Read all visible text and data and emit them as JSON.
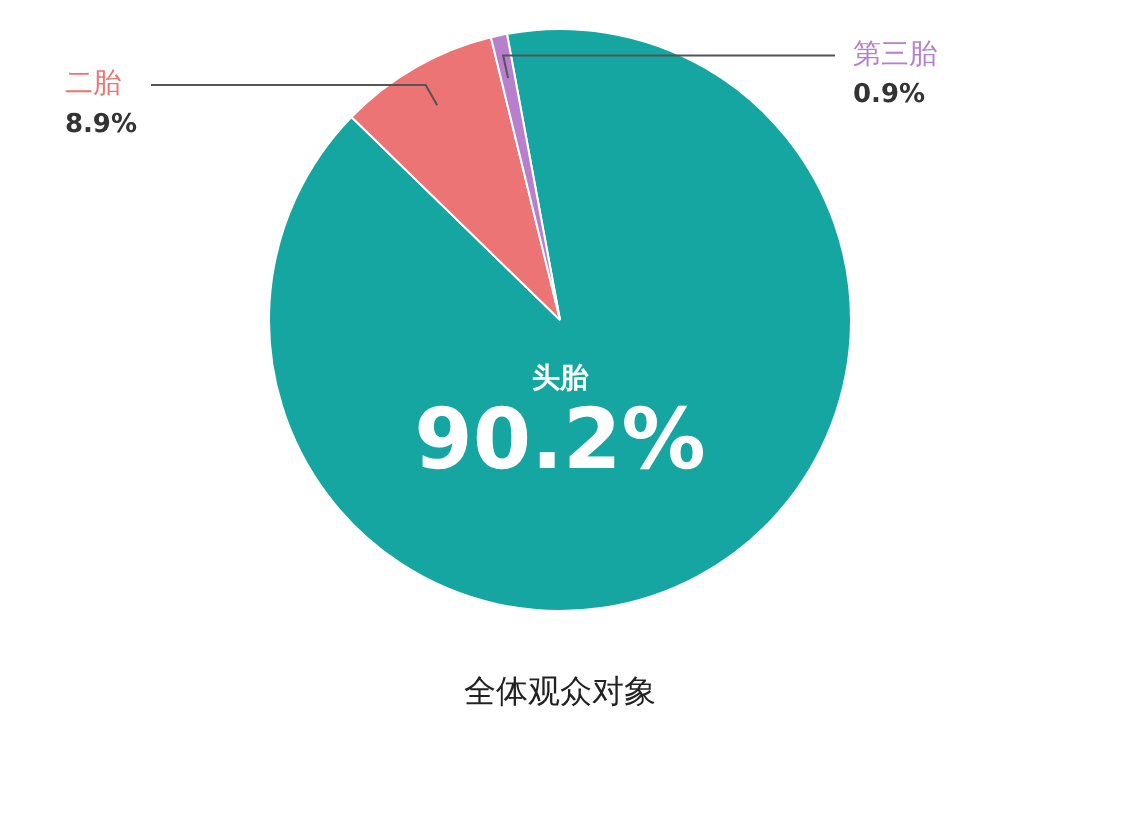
{
  "chart_data": {
    "type": "pie",
    "title": "全体观众对象",
    "categories": [
      "头胎",
      "二胎",
      "第三胎"
    ],
    "values": [
      90.2,
      8.9,
      0.9
    ],
    "colors": [
      "#16a6a1",
      "#ec7474",
      "#b77fcc"
    ],
    "value_labels": [
      "90.2%",
      "8.9%",
      "0.9%"
    ]
  }
}
